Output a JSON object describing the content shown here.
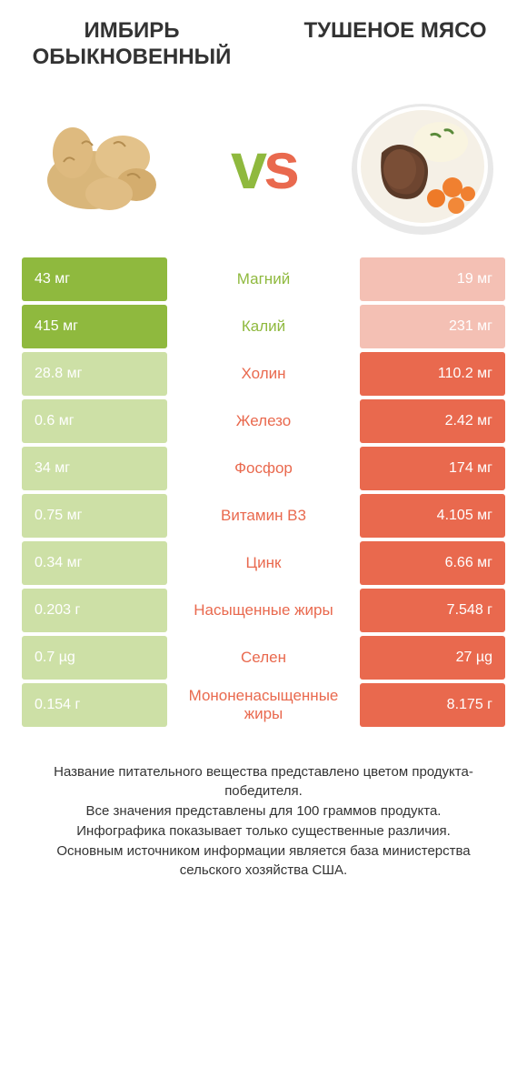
{
  "colors": {
    "left_strong": "#8fb93e",
    "left_weak": "#cde0a6",
    "right_strong": "#e9694e",
    "right_weak": "#f4c0b4",
    "text_dark": "#333333",
    "background": "#ffffff"
  },
  "typography": {
    "title_fontsize": 24,
    "vs_fontsize": 72,
    "cell_fontsize": 16,
    "label_fontsize": 17,
    "footer_fontsize": 15
  },
  "left": {
    "title": "ИМБИРЬ ОБЫКНОВЕННЫЙ",
    "image": "ginger"
  },
  "right": {
    "title": "ТУШЕНОЕ МЯСО",
    "image": "stew"
  },
  "vs_label": "vs",
  "rows": [
    {
      "label": "Магний",
      "left": "43 мг",
      "right": "19 мг",
      "winner": "left"
    },
    {
      "label": "Калий",
      "left": "415 мг",
      "right": "231 мг",
      "winner": "left"
    },
    {
      "label": "Холин",
      "left": "28.8 мг",
      "right": "110.2 мг",
      "winner": "right"
    },
    {
      "label": "Железо",
      "left": "0.6 мг",
      "right": "2.42 мг",
      "winner": "right"
    },
    {
      "label": "Фосфор",
      "left": "34 мг",
      "right": "174 мг",
      "winner": "right"
    },
    {
      "label": "Витамин B3",
      "left": "0.75 мг",
      "right": "4.105 мг",
      "winner": "right"
    },
    {
      "label": "Цинк",
      "left": "0.34 мг",
      "right": "6.66 мг",
      "winner": "right"
    },
    {
      "label": "Насыщенные жиры",
      "left": "0.203 г",
      "right": "7.548 г",
      "winner": "right"
    },
    {
      "label": "Селен",
      "left": "0.7 µg",
      "right": "27 µg",
      "winner": "right"
    },
    {
      "label": "Мононенасыщенные жиры",
      "left": "0.154 г",
      "right": "8.175 г",
      "winner": "right"
    }
  ],
  "footer": [
    "Название питательного вещества представлено цветом продукта-победителя.",
    "Все значения представлены для 100 граммов продукта.",
    "Инфографика показывает только существенные различия.",
    "Основным источником информации является база министерства сельского хозяйства США."
  ]
}
